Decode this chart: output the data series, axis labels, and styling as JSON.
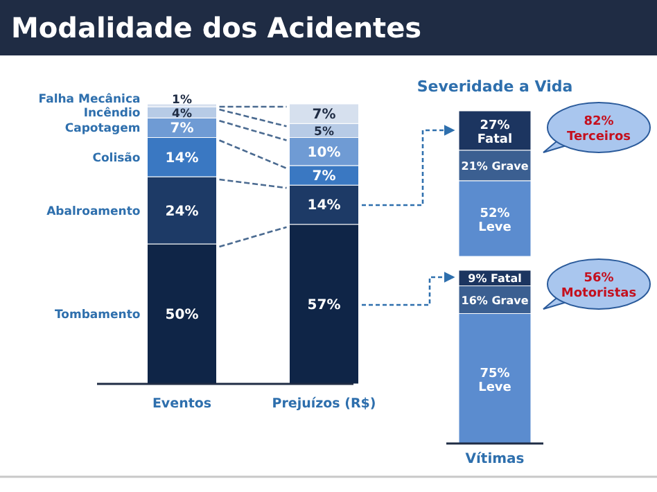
{
  "chart_data": [
    {
      "type": "bar",
      "title": "Modalidade dos Acidentes",
      "categories": [
        "Eventos",
        "Prejuízos (R$)"
      ],
      "stacked": true,
      "series": [
        {
          "name": "Tombamento",
          "color": "#0f2547",
          "values": [
            50,
            57
          ],
          "value_labels": [
            "50%",
            "57%"
          ]
        },
        {
          "name": "Abalroamento",
          "color": "#1d3a66",
          "values": [
            24,
            14
          ],
          "value_labels": [
            "24%",
            "14%"
          ]
        },
        {
          "name": "Colisão",
          "color": "#3a78c2",
          "values": [
            14,
            7
          ],
          "value_labels": [
            "14%",
            "7%"
          ]
        },
        {
          "name": "Capotagem",
          "color": "#6f9bd4",
          "values": [
            7,
            10
          ],
          "value_labels": [
            "7%",
            "10%"
          ]
        },
        {
          "name": "Incêndio",
          "color": "#b7cbe6",
          "values": [
            4,
            5
          ],
          "value_labels": [
            "4%",
            "5%"
          ]
        },
        {
          "name": "Falha Mecânica",
          "color": "#d6e0ee",
          "values": [
            1,
            7
          ],
          "value_labels": [
            "1%",
            "7%"
          ]
        }
      ]
    },
    {
      "type": "bar",
      "title": "Severidade a Vida",
      "categories": [
        null
      ],
      "stacked": true,
      "annotations": [
        "82% Terceiros"
      ],
      "series": [
        {
          "name": "Leve",
          "color": "#5b8ccf",
          "values": [
            52
          ],
          "value_labels": [
            "52%"
          ]
        },
        {
          "name": "Grave",
          "color": "#3b5f91",
          "values": [
            21
          ],
          "value_labels": [
            "21%"
          ]
        },
        {
          "name": "Fatal",
          "color": "#1c3560",
          "values": [
            27
          ],
          "value_labels": [
            "27%"
          ]
        }
      ]
    },
    {
      "type": "bar",
      "xlabel": "Vítimas",
      "categories": [
        null
      ],
      "stacked": true,
      "annotations": [
        "56% Motoristas"
      ],
      "series": [
        {
          "name": "Leve",
          "color": "#5b8ccf",
          "values": [
            75
          ],
          "value_labels": [
            "75%"
          ]
        },
        {
          "name": "Grave",
          "color": "#3b5f91",
          "values": [
            16
          ],
          "value_labels": [
            "16%"
          ]
        },
        {
          "name": "Fatal",
          "color": "#1c3560",
          "values": [
            9
          ],
          "value_labels": [
            "9%"
          ]
        }
      ]
    }
  ]
}
